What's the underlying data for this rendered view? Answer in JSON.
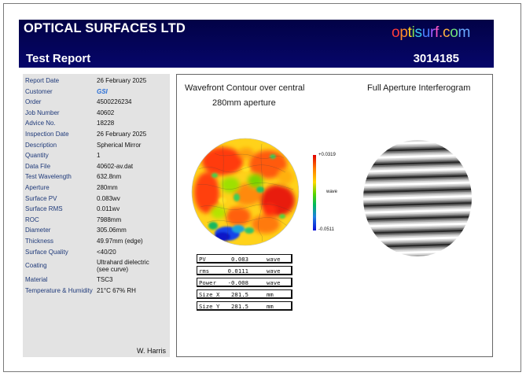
{
  "header": {
    "company": "OPTICAL SURFACES LTD",
    "brand": "optisurf.com",
    "brand_colors": [
      "#ff3b3b",
      "#ff8a2a",
      "#ffd21f",
      "#7ee04c",
      "#39c7e8",
      "#4a7cff",
      "#a45dff",
      "#ff58c8",
      "#ff6a6a",
      "#ffb340",
      "#6fe07a",
      "#6aa8ff"
    ],
    "report_title": "Test Report",
    "report_number": "3014185"
  },
  "info": {
    "rows": [
      {
        "label": "Report Date",
        "value": "26 February 2025"
      },
      {
        "label": "Customer",
        "value": "GSI"
      },
      {
        "label": "Order",
        "value": "4500226234"
      },
      {
        "label": "Job Number",
        "value": "40602"
      },
      {
        "label": "Advice No.",
        "value": "18228"
      },
      {
        "label": "Inspection Date",
        "value": "26 February 2025"
      },
      {
        "label": "Description",
        "value": "Spherical Mirror"
      },
      {
        "label": "Quantity",
        "value": "1"
      },
      {
        "label": "Data File",
        "value": "40602-av.dat"
      },
      {
        "label": "Test Wavelength",
        "value": "632.8nm"
      },
      {
        "label": "Aperture",
        "value": "280mm"
      },
      {
        "label": "Surface PV",
        "value": "0.083wv"
      },
      {
        "label": "Surface RMS",
        "value": "0.011wv"
      },
      {
        "label": "ROC",
        "value": "7988mm"
      },
      {
        "label": "Diameter",
        "value": "305.06mm"
      },
      {
        "label": "Thickness",
        "value": "49.97mm (edge)"
      },
      {
        "label": "Surface Quality",
        "value": "<40/20"
      },
      {
        "label": "Coating",
        "value": "Ultrahard dielectric",
        "value2": "(see curve)"
      },
      {
        "label": "Material",
        "value": "TSC3"
      },
      {
        "label": "Temperature & Humidity",
        "value": "21°C    67%  RH"
      }
    ],
    "signature": "W. Harris"
  },
  "results": {
    "wavefront_title": "Wavefront Contour over central",
    "wavefront_subtitle": "280mm aperture",
    "interferogram_title": "Full Aperture Interferogram",
    "colorbar_max": "+0.0319",
    "colorbar_unit": "wave",
    "colorbar_min": "-0.0511",
    "stats": [
      {
        "label": "PV",
        "value": "0.083",
        "unit": "wave"
      },
      {
        "label": "rms",
        "value": "0.0111",
        "unit": "wave"
      },
      {
        "label": "Power",
        "value": "-0.008",
        "unit": "wave"
      },
      {
        "label": "Size X",
        "value": "281.5",
        "unit": "mm"
      },
      {
        "label": "Size Y",
        "value": "281.5",
        "unit": "mm"
      }
    ]
  }
}
